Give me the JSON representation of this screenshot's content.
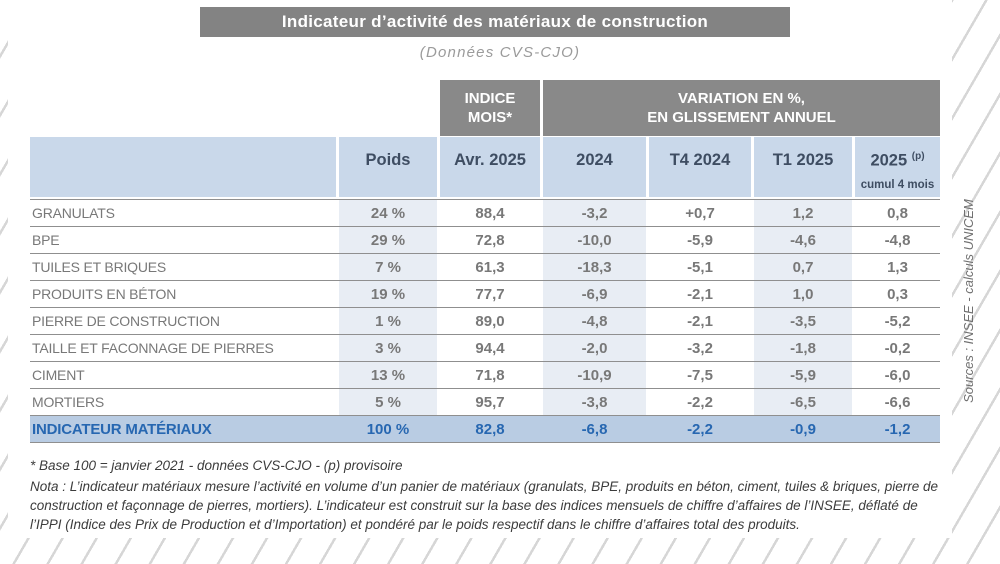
{
  "title": "Indicateur d’activité des matériaux de construction",
  "subtitle": "(Données CVS-CJO)",
  "table": {
    "group_headers": {
      "indice_line1": "INDICE",
      "indice_line2": "MOIS*",
      "variation_line1": "VARIATION EN %,",
      "variation_line2": "EN GLISSEMENT ANNUEL"
    },
    "col_headers": {
      "poids": "Poids",
      "indice": "Avr. 2025",
      "y2024": "2024",
      "t4_2024": "T4 2024",
      "t1_2025": "T1 2025",
      "y2025": "2025",
      "y2025_sup": "(p)",
      "y2025_note": "cumul 4 mois"
    },
    "rows": [
      {
        "label": "GRANULATS",
        "poids": "24 %",
        "indice": "88,4",
        "y2024": "-3,2",
        "t4": "+0,7",
        "t1": "1,2",
        "c2025": "0,8"
      },
      {
        "label": "BPE",
        "poids": "29 %",
        "indice": "72,8",
        "y2024": "-10,0",
        "t4": "-5,9",
        "t1": "-4,6",
        "c2025": "-4,8"
      },
      {
        "label": "TUILES ET BRIQUES",
        "poids": "7 %",
        "indice": "61,3",
        "y2024": "-18,3",
        "t4": "-5,1",
        "t1": "0,7",
        "c2025": "1,3"
      },
      {
        "label": "PRODUITS EN BÉTON",
        "poids": "19 %",
        "indice": "77,7",
        "y2024": "-6,9",
        "t4": "-2,1",
        "t1": "1,0",
        "c2025": "0,3"
      },
      {
        "label": "PIERRE DE CONSTRUCTION",
        "poids": "1 %",
        "indice": "89,0",
        "y2024": "-4,8",
        "t4": "-2,1",
        "t1": "-3,5",
        "c2025": "-5,2"
      },
      {
        "label": "TAILLE ET FACONNAGE DE PIERRES",
        "poids": "3 %",
        "indice": "94,4",
        "y2024": "-2,0",
        "t4": "-3,2",
        "t1": "-1,8",
        "c2025": "-0,2"
      },
      {
        "label": "CIMENT",
        "poids": "13 %",
        "indice": "71,8",
        "y2024": "-10,9",
        "t4": "-7,5",
        "t1": "-5,9",
        "c2025": "-6,0"
      },
      {
        "label": "MORTIERS",
        "poids": "5 %",
        "indice": "95,7",
        "y2024": "-3,8",
        "t4": "-2,2",
        "t1": "-6,5",
        "c2025": "-6,6"
      }
    ],
    "total": {
      "label": "INDICATEUR MATÉRIAUX",
      "poids": "100 %",
      "indice": "82,8",
      "y2024": "-6,8",
      "t4": "-2,2",
      "t1": "-0,9",
      "c2025": "-1,2"
    }
  },
  "footnotes": {
    "base": "* Base 100 = janvier 2021 - données CVS-CJO - (p) provisoire",
    "nota": "Nota :  L’indicateur matériaux mesure l’activité en volume d’un panier de matériaux (granulats, BPE, produits en béton, ciment, tuiles & briques, pierre de construction et façonnage de pierres, mortiers). L’indicateur est construit sur la base des indices mensuels de chiffre d’affaires de l’INSEE, déflaté de l’IPPI (Indice des Prix de Production et d’Importation) et pondéré par le poids respectif dans le chiffre d’affaires total des produits."
  },
  "source": "Sources : INSEE - calculs UNICEM",
  "colors": {
    "title_bg": "#838383",
    "group_header_bg": "#898989",
    "header_row_bg": "#c9d8ea",
    "header_text": "#3e4d62",
    "column_tint": "#e8edf4",
    "total_row_bg": "#b9cce3",
    "total_text": "#2767b1",
    "data_text": "#787878",
    "separator": "#8f8f8f",
    "hatch_line": "#d6d6d6"
  }
}
